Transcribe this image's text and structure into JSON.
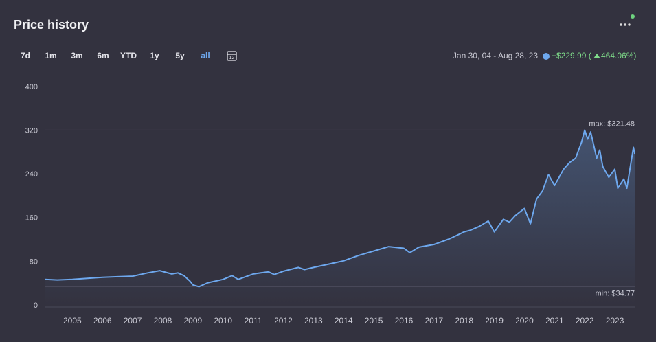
{
  "header": {
    "title": "Price history",
    "range_buttons": [
      "7d",
      "1m",
      "3m",
      "6m",
      "YTD",
      "1y",
      "5y",
      "all"
    ],
    "calendar_day": "12",
    "date_range": "Jan 30, 04 - Aug 28, 23",
    "change": "+$229.99 (",
    "change_pct": "464.06%)"
  },
  "chart_data": {
    "type": "line",
    "color": "#6ea8ee",
    "x": [
      2004.08,
      2004.5,
      2005.0,
      2005.5,
      2006.0,
      2006.5,
      2007.0,
      2007.5,
      2007.9,
      2008.3,
      2008.5,
      2008.7,
      2008.9,
      2009.0,
      2009.2,
      2009.5,
      2010.0,
      2010.3,
      2010.5,
      2011.0,
      2011.5,
      2011.7,
      2012.0,
      2012.5,
      2012.7,
      2013.0,
      2013.5,
      2014.0,
      2014.5,
      2015.0,
      2015.5,
      2016.0,
      2016.2,
      2016.5,
      2017.0,
      2017.5,
      2018.0,
      2018.2,
      2018.5,
      2018.8,
      2019.0,
      2019.3,
      2019.5,
      2019.7,
      2020.0,
      2020.2,
      2020.4,
      2020.6,
      2020.8,
      2021.0,
      2021.3,
      2021.5,
      2021.7,
      2021.9,
      2022.0,
      2022.1,
      2022.2,
      2022.4,
      2022.5,
      2022.6,
      2022.8,
      2023.0,
      2023.1,
      2023.3,
      2023.4,
      2023.5,
      2023.62,
      2023.66
    ],
    "values": [
      48,
      47,
      48,
      50,
      52,
      53,
      54,
      60,
      64,
      58,
      60,
      55,
      45,
      38,
      34.77,
      42,
      48,
      55,
      48,
      58,
      62,
      57,
      63,
      70,
      66,
      70,
      76,
      82,
      92,
      100,
      108,
      105,
      97,
      107,
      112,
      122,
      135,
      138,
      145,
      155,
      135,
      158,
      153,
      165,
      178,
      150,
      195,
      210,
      240,
      220,
      250,
      262,
      270,
      300,
      321.48,
      305,
      318,
      270,
      285,
      255,
      235,
      250,
      215,
      232,
      215,
      250,
      290,
      278
    ],
    "xlim": [
      2004.08,
      2023.66
    ],
    "xticks": [
      2005,
      2006,
      2007,
      2008,
      2009,
      2010,
      2011,
      2012,
      2013,
      2014,
      2015,
      2016,
      2017,
      2018,
      2019,
      2020,
      2021,
      2022,
      2023
    ],
    "ylim": [
      0,
      400
    ],
    "yticks": [
      0,
      80,
      160,
      240,
      320,
      400
    ],
    "max": 321.48,
    "max_label": "max: $321.48",
    "min": 34.77,
    "min_label": "min: $34.77"
  }
}
